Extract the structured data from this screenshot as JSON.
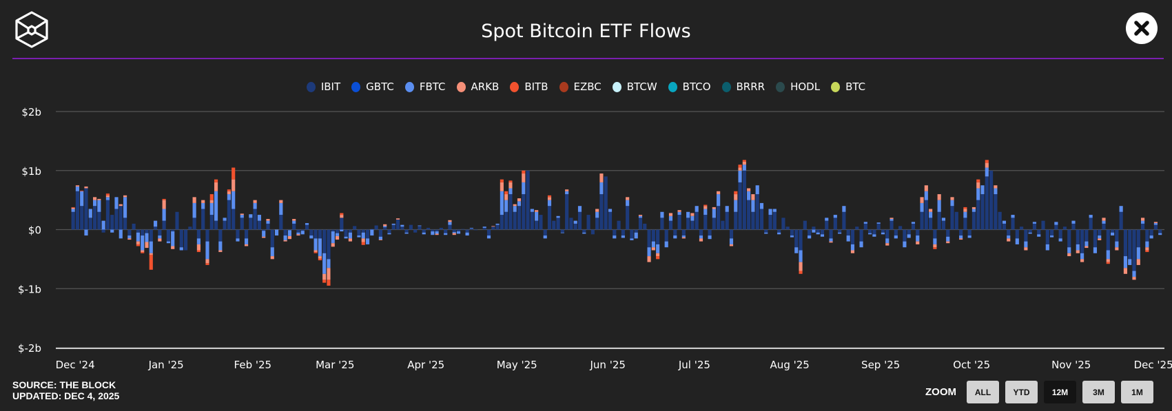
{
  "header": {
    "title": "Spot Bitcoin ETF Flows",
    "close_icon": "close-x-icon",
    "logo_icon": "the-block-cube-logo"
  },
  "footer": {
    "source": "SOURCE: THE BLOCK",
    "updated": "UPDATED: DEC 4, 2025"
  },
  "zoom": {
    "label": "ZOOM",
    "buttons": [
      "ALL",
      "YTD",
      "12M",
      "3M",
      "1M"
    ],
    "active": "12M"
  },
  "legend": [
    {
      "name": "IBIT",
      "color": "#1d3a7a"
    },
    {
      "name": "GBTC",
      "color": "#0a4fd6"
    },
    {
      "name": "FBTC",
      "color": "#5b8ef0"
    },
    {
      "name": "ARKB",
      "color": "#f58f78"
    },
    {
      "name": "BITB",
      "color": "#f2522e"
    },
    {
      "name": "EZBC",
      "color": "#a93a1e"
    },
    {
      "name": "BTCW",
      "color": "#c8f2fb"
    },
    {
      "name": "BTCO",
      "color": "#09a6c0"
    },
    {
      "name": "BRRR",
      "color": "#0b5e6d"
    },
    {
      "name": "HODL",
      "color": "#2b4a4d"
    },
    {
      "name": "BTC",
      "color": "#c8d85a"
    }
  ],
  "chart_data": {
    "type": "bar",
    "stacked": true,
    "title": "Spot Bitcoin ETF Flows",
    "unit": "$m",
    "ylim": [
      -2000,
      2000
    ],
    "y_ticks": [
      {
        "value": 2000,
        "label": "$2b"
      },
      {
        "value": 1000,
        "label": "$1b"
      },
      {
        "value": 0,
        "label": "$0"
      },
      {
        "value": -1000,
        "label": "$-1b"
      },
      {
        "value": -2000,
        "label": "$-2b"
      }
    ],
    "x_ticks": [
      {
        "index": 0,
        "label": "Dec '24"
      },
      {
        "index": 21,
        "label": "Jan '25"
      },
      {
        "index": 41,
        "label": "Feb '25"
      },
      {
        "index": 60,
        "label": "Mar '25"
      },
      {
        "index": 81,
        "label": "Apr '25"
      },
      {
        "index": 102,
        "label": "May '25"
      },
      {
        "index": 123,
        "label": "Jun '25"
      },
      {
        "index": 143,
        "label": "Jul '25"
      },
      {
        "index": 165,
        "label": "Aug '25"
      },
      {
        "index": 186,
        "label": "Sep '25"
      },
      {
        "index": 207,
        "label": "Oct '25"
      },
      {
        "index": 230,
        "label": "Nov '25"
      },
      {
        "index": 249,
        "label": "Dec '25"
      }
    ],
    "grid": true,
    "legend_position": "top",
    "series_order": [
      "IBIT",
      "FBTC",
      "ARKB",
      "BITB"
    ],
    "values": [
      [
        300,
        50,
        20,
        10
      ],
      [
        650,
        80,
        20,
        0
      ],
      [
        400,
        250,
        0,
        10
      ],
      [
        700,
        -100,
        30,
        0
      ],
      [
        200,
        150,
        0,
        0
      ],
      [
        400,
        100,
        50,
        0
      ],
      [
        300,
        200,
        20,
        0
      ],
      [
        -50,
        150,
        0,
        0
      ],
      [
        500,
        50,
        30,
        30
      ],
      [
        250,
        -50,
        0,
        0
      ],
      [
        350,
        200,
        0,
        0
      ],
      [
        400,
        -150,
        30,
        0
      ],
      [
        200,
        350,
        30,
        0
      ],
      [
        -100,
        -50,
        -20,
        0
      ],
      [
        100,
        0,
        0,
        0
      ],
      [
        -50,
        -150,
        -50,
        -30
      ],
      [
        -100,
        -250,
        -30,
        -20
      ],
      [
        -60,
        -150,
        -100,
        0
      ],
      [
        -200,
        -200,
        -30,
        -250
      ],
      [
        50,
        100,
        0,
        0
      ],
      [
        -100,
        -50,
        -50,
        0
      ],
      [
        150,
        200,
        150,
        20
      ],
      [
        -200,
        -30,
        0,
        0
      ],
      [
        -30,
        -250,
        -50,
        0
      ],
      [
        300,
        0,
        0,
        0
      ],
      [
        -300,
        -50,
        0,
        0
      ],
      [
        -350,
        0,
        0,
        0
      ],
      [
        50,
        0,
        0,
        0
      ],
      [
        200,
        250,
        100,
        0
      ],
      [
        -150,
        -100,
        -100,
        -30
      ],
      [
        350,
        100,
        50,
        0
      ],
      [
        -200,
        -300,
        -70,
        -30
      ],
      [
        250,
        200,
        50,
        100
      ],
      [
        150,
        500,
        150,
        50
      ],
      [
        -200,
        -150,
        -30,
        0
      ],
      [
        150,
        50,
        0,
        0
      ],
      [
        500,
        100,
        50,
        30
      ],
      [
        350,
        300,
        200,
        200
      ],
      [
        -150,
        -50,
        0,
        0
      ],
      [
        200,
        50,
        20,
        0
      ],
      [
        -150,
        -100,
        -30,
        0
      ],
      [
        200,
        60,
        0,
        0
      ],
      [
        350,
        100,
        50,
        0
      ],
      [
        150,
        100,
        0,
        0
      ],
      [
        -20,
        -100,
        -20,
        0
      ],
      [
        100,
        50,
        30,
        0
      ],
      [
        -300,
        -150,
        -50,
        0
      ],
      [
        0,
        -100,
        0,
        0
      ],
      [
        250,
        200,
        50,
        0
      ],
      [
        -100,
        -80,
        -20,
        0
      ],
      [
        -10,
        -100,
        -50,
        0
      ],
      [
        100,
        50,
        30,
        0
      ],
      [
        -50,
        -30,
        -20,
        0
      ],
      [
        -20,
        -60,
        0,
        0
      ],
      [
        80,
        30,
        0,
        0
      ],
      [
        -100,
        -50,
        0,
        0
      ],
      [
        -150,
        -200,
        -30,
        -20
      ],
      [
        -150,
        -300,
        -40,
        -30
      ],
      [
        -400,
        -350,
        -100,
        -50
      ],
      [
        -500,
        -150,
        -200,
        -100
      ],
      [
        -30,
        -200,
        -60,
        0
      ],
      [
        -60,
        -50,
        -60,
        0
      ],
      [
        200,
        -30,
        50,
        30
      ],
      [
        -120,
        -30,
        0,
        0
      ],
      [
        -50,
        -100,
        -50,
        0
      ],
      [
        60,
        0,
        0,
        0
      ],
      [
        -100,
        -30,
        0,
        0
      ],
      [
        -50,
        -100,
        -60,
        -50
      ],
      [
        -150,
        -100,
        0,
        0
      ],
      [
        10,
        -100,
        0,
        0
      ],
      [
        70,
        0,
        0,
        0
      ],
      [
        -120,
        -50,
        -10,
        0
      ],
      [
        40,
        20,
        30,
        0
      ],
      [
        -60,
        -20,
        0,
        0
      ],
      [
        80,
        20,
        0,
        0
      ],
      [
        170,
        0,
        20,
        0
      ],
      [
        50,
        30,
        0,
        0
      ],
      [
        -50,
        -20,
        0,
        0
      ],
      [
        80,
        0,
        0,
        0
      ],
      [
        -50,
        0,
        0,
        0
      ],
      [
        60,
        10,
        0,
        0
      ],
      [
        -50,
        -30,
        0,
        0
      ],
      [
        30,
        0,
        0,
        0
      ],
      [
        -30,
        -60,
        0,
        0
      ],
      [
        -30,
        -40,
        -20,
        0
      ],
      [
        30,
        0,
        0,
        0
      ],
      [
        -60,
        -30,
        0,
        0
      ],
      [
        80,
        50,
        30,
        0
      ],
      [
        -40,
        -20,
        -30,
        0
      ],
      [
        -30,
        -40,
        0,
        0
      ],
      [
        10,
        0,
        0,
        0
      ],
      [
        -50,
        -50,
        0,
        0
      ],
      [
        20,
        10,
        0,
        0
      ],
      [
        -10,
        0,
        0,
        0
      ],
      [
        0,
        0,
        0,
        0
      ],
      [
        30,
        20,
        0,
        0
      ],
      [
        -100,
        -50,
        0,
        0
      ],
      [
        50,
        0,
        10,
        0
      ],
      [
        80,
        20,
        0,
        0
      ],
      [
        250,
        400,
        150,
        50
      ],
      [
        300,
        200,
        100,
        50
      ],
      [
        600,
        100,
        100,
        30
      ],
      [
        300,
        100,
        30,
        0
      ],
      [
        400,
        80,
        50,
        0
      ],
      [
        600,
        200,
        150,
        50
      ],
      [
        1000,
        0,
        0,
        0
      ],
      [
        300,
        50,
        0,
        0
      ],
      [
        150,
        150,
        30,
        0
      ],
      [
        250,
        0,
        0,
        0
      ],
      [
        -100,
        -50,
        0,
        0
      ],
      [
        400,
        100,
        50,
        30
      ],
      [
        150,
        0,
        0,
        0
      ],
      [
        200,
        30,
        0,
        0
      ],
      [
        -50,
        -10,
        0,
        0
      ],
      [
        600,
        50,
        30,
        0
      ],
      [
        200,
        0,
        0,
        0
      ],
      [
        100,
        50,
        0,
        0
      ],
      [
        300,
        100,
        0,
        0
      ],
      [
        -50,
        -20,
        0,
        0
      ],
      [
        250,
        0,
        0,
        0
      ],
      [
        -80,
        0,
        0,
        0
      ],
      [
        200,
        100,
        50,
        0
      ],
      [
        600,
        200,
        150,
        0
      ],
      [
        900,
        0,
        0,
        0
      ],
      [
        300,
        50,
        0,
        0
      ],
      [
        -100,
        -50,
        0,
        0
      ],
      [
        150,
        0,
        0,
        0
      ],
      [
        -100,
        -40,
        0,
        0
      ],
      [
        400,
        100,
        50,
        0
      ],
      [
        -150,
        -30,
        0,
        0
      ],
      [
        -50,
        -100,
        0,
        0
      ],
      [
        200,
        30,
        20,
        0
      ],
      [
        100,
        0,
        0,
        0
      ],
      [
        -300,
        -150,
        -100,
        0
      ],
      [
        -200,
        -100,
        -50,
        0
      ],
      [
        -250,
        -150,
        -50,
        -50
      ],
      [
        200,
        100,
        0,
        0
      ],
      [
        -200,
        -100,
        0,
        0
      ],
      [
        150,
        80,
        50,
        0
      ],
      [
        -100,
        -50,
        0,
        0
      ],
      [
        250,
        50,
        30,
        0
      ],
      [
        -100,
        -30,
        -20,
        0
      ],
      [
        200,
        100,
        0,
        0
      ],
      [
        150,
        80,
        50,
        0
      ],
      [
        300,
        100,
        0,
        0
      ],
      [
        -100,
        -50,
        -50,
        0
      ],
      [
        250,
        100,
        50,
        20
      ],
      [
        -100,
        -60,
        0,
        0
      ],
      [
        200,
        150,
        30,
        0
      ],
      [
        400,
        200,
        50,
        0
      ],
      [
        150,
        0,
        0,
        0
      ],
      [
        300,
        100,
        0,
        0
      ],
      [
        -150,
        -100,
        -30,
        0
      ],
      [
        300,
        200,
        100,
        50
      ],
      [
        800,
        200,
        50,
        50
      ],
      [
        1000,
        100,
        50,
        30
      ],
      [
        500,
        150,
        50,
        0
      ],
      [
        300,
        200,
        100,
        0
      ],
      [
        600,
        150,
        0,
        0
      ],
      [
        350,
        100,
        0,
        0
      ],
      [
        -50,
        -20,
        0,
        0
      ],
      [
        250,
        100,
        0,
        0
      ],
      [
        300,
        50,
        0,
        0
      ],
      [
        -50,
        -30,
        0,
        0
      ],
      [
        200,
        0,
        0,
        0
      ],
      [
        50,
        0,
        0,
        0
      ],
      [
        -100,
        -30,
        0,
        0
      ],
      [
        -300,
        -100,
        0,
        0
      ],
      [
        -350,
        -200,
        -150,
        -50
      ],
      [
        150,
        0,
        0,
        0
      ],
      [
        -100,
        -50,
        0,
        0
      ],
      [
        50,
        -50,
        0,
        0
      ],
      [
        -50,
        -30,
        0,
        0
      ],
      [
        -80,
        -40,
        0,
        0
      ],
      [
        150,
        50,
        0,
        0
      ],
      [
        -150,
        -50,
        -20,
        0
      ],
      [
        200,
        50,
        0,
        0
      ],
      [
        -50,
        -20,
        0,
        0
      ],
      [
        300,
        100,
        0,
        0
      ],
      [
        -100,
        -100,
        0,
        0
      ],
      [
        -250,
        -100,
        -50,
        0
      ],
      [
        50,
        0,
        0,
        0
      ],
      [
        -200,
        -100,
        0,
        0
      ],
      [
        100,
        30,
        0,
        0
      ],
      [
        -60,
        -20,
        0,
        0
      ],
      [
        -80,
        -40,
        0,
        0
      ],
      [
        100,
        20,
        0,
        0
      ],
      [
        -50,
        -30,
        0,
        0
      ],
      [
        -150,
        -80,
        -40,
        0
      ],
      [
        150,
        30,
        20,
        0
      ],
      [
        -100,
        -50,
        0,
        0
      ],
      [
        60,
        0,
        0,
        0
      ],
      [
        -200,
        -100,
        0,
        0
      ],
      [
        -80,
        -60,
        0,
        0
      ],
      [
        100,
        30,
        0,
        0
      ],
      [
        -100,
        -100,
        -50,
        0
      ],
      [
        300,
        150,
        100,
        0
      ],
      [
        500,
        150,
        100,
        0
      ],
      [
        200,
        100,
        50,
        0
      ],
      [
        -150,
        -100,
        -50,
        -30
      ],
      [
        300,
        200,
        100,
        0
      ],
      [
        150,
        50,
        0,
        0
      ],
      [
        -120,
        -80,
        -30,
        0
      ],
      [
        400,
        100,
        50,
        0
      ],
      [
        300,
        0,
        0,
        0
      ],
      [
        -100,
        -50,
        -20,
        0
      ],
      [
        200,
        100,
        50,
        30
      ],
      [
        -100,
        -40,
        0,
        0
      ],
      [
        300,
        50,
        30,
        0
      ],
      [
        500,
        200,
        100,
        50
      ],
      [
        600,
        150,
        0,
        0
      ],
      [
        900,
        150,
        80,
        50
      ],
      [
        1000,
        0,
        0,
        0
      ],
      [
        600,
        100,
        50,
        0
      ],
      [
        300,
        0,
        0,
        0
      ],
      [
        100,
        50,
        0,
        0
      ],
      [
        -100,
        -50,
        -50,
        0
      ],
      [
        200,
        50,
        0,
        0
      ],
      [
        -150,
        -100,
        0,
        0
      ],
      [
        50,
        0,
        0,
        0
      ],
      [
        -200,
        -100,
        -50,
        0
      ],
      [
        -50,
        -20,
        0,
        0
      ],
      [
        100,
        30,
        0,
        0
      ],
      [
        -80,
        -40,
        0,
        0
      ],
      [
        150,
        0,
        0,
        0
      ],
      [
        -250,
        -100,
        0,
        0
      ],
      [
        -100,
        -30,
        0,
        0
      ],
      [
        80,
        50,
        0,
        0
      ],
      [
        -150,
        -50,
        0,
        0
      ],
      [
        50,
        0,
        0,
        0
      ],
      [
        -300,
        -100,
        -50,
        0
      ],
      [
        100,
        50,
        0,
        0
      ],
      [
        -250,
        -100,
        -50,
        0
      ],
      [
        -400,
        -100,
        -50,
        0
      ],
      [
        -200,
        -80,
        -30,
        0
      ],
      [
        200,
        50,
        0,
        0
      ],
      [
        -300,
        -100,
        0,
        0
      ],
      [
        -100,
        -50,
        -30,
        0
      ],
      [
        100,
        50,
        50,
        0
      ],
      [
        -350,
        -150,
        -50,
        -30
      ],
      [
        -50,
        -50,
        0,
        0
      ],
      [
        -200,
        -100,
        -50,
        0
      ],
      [
        300,
        100,
        0,
        0
      ],
      [
        -450,
        -200,
        -100,
        0
      ],
      [
        -500,
        -100,
        0,
        0
      ],
      [
        -700,
        -100,
        -50,
        0
      ],
      [
        -300,
        -200,
        -100,
        0
      ],
      [
        100,
        50,
        50,
        0
      ],
      [
        -200,
        -100,
        -50,
        -30
      ],
      [
        -100,
        -50,
        0,
        0
      ],
      [
        80,
        30,
        20,
        0
      ],
      [
        -60,
        -30,
        0,
        0
      ]
    ]
  }
}
